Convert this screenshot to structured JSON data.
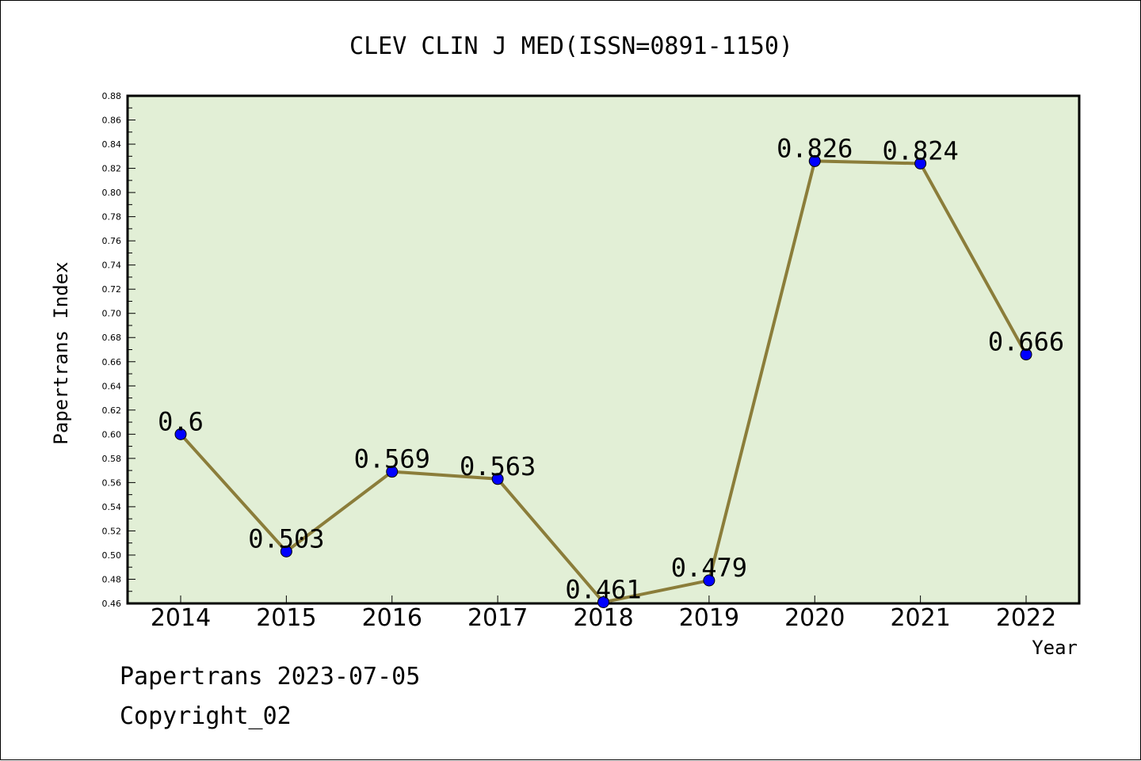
{
  "chart_data": {
    "type": "line",
    "title": "CLEV CLIN J MED(ISSN=0891-1150)",
    "xlabel": "Year",
    "ylabel": "Papertrans Index",
    "categories": [
      "2014",
      "2015",
      "2016",
      "2017",
      "2018",
      "2019",
      "2020",
      "2021",
      "2022"
    ],
    "series": [
      {
        "values": [
          0.6,
          0.503,
          0.569,
          0.563,
          0.461,
          0.479,
          0.826,
          0.824,
          0.666
        ],
        "data_labels": [
          "0.6",
          "0.503",
          "0.569",
          "0.563",
          "0.461",
          "0.479",
          "0.826",
          "0.824",
          "0.666"
        ]
      }
    ],
    "ylim": [
      0.46,
      0.88
    ],
    "yticks": [
      "0.46",
      "0.48",
      "0.50",
      "0.52",
      "0.54",
      "0.56",
      "0.58",
      "0.60",
      "0.62",
      "0.64",
      "0.66",
      "0.68",
      "0.70",
      "0.72",
      "0.74",
      "0.76",
      "0.78",
      "0.80",
      "0.82",
      "0.84",
      "0.86",
      "0.88"
    ],
    "grid": false,
    "colors": {
      "plot_background": "#e2efd6",
      "line": "#8b7d3a",
      "marker": "#0000ff"
    }
  },
  "footer": {
    "line1": "Papertrans 2023-07-05",
    "line2": "Copyright_02"
  }
}
